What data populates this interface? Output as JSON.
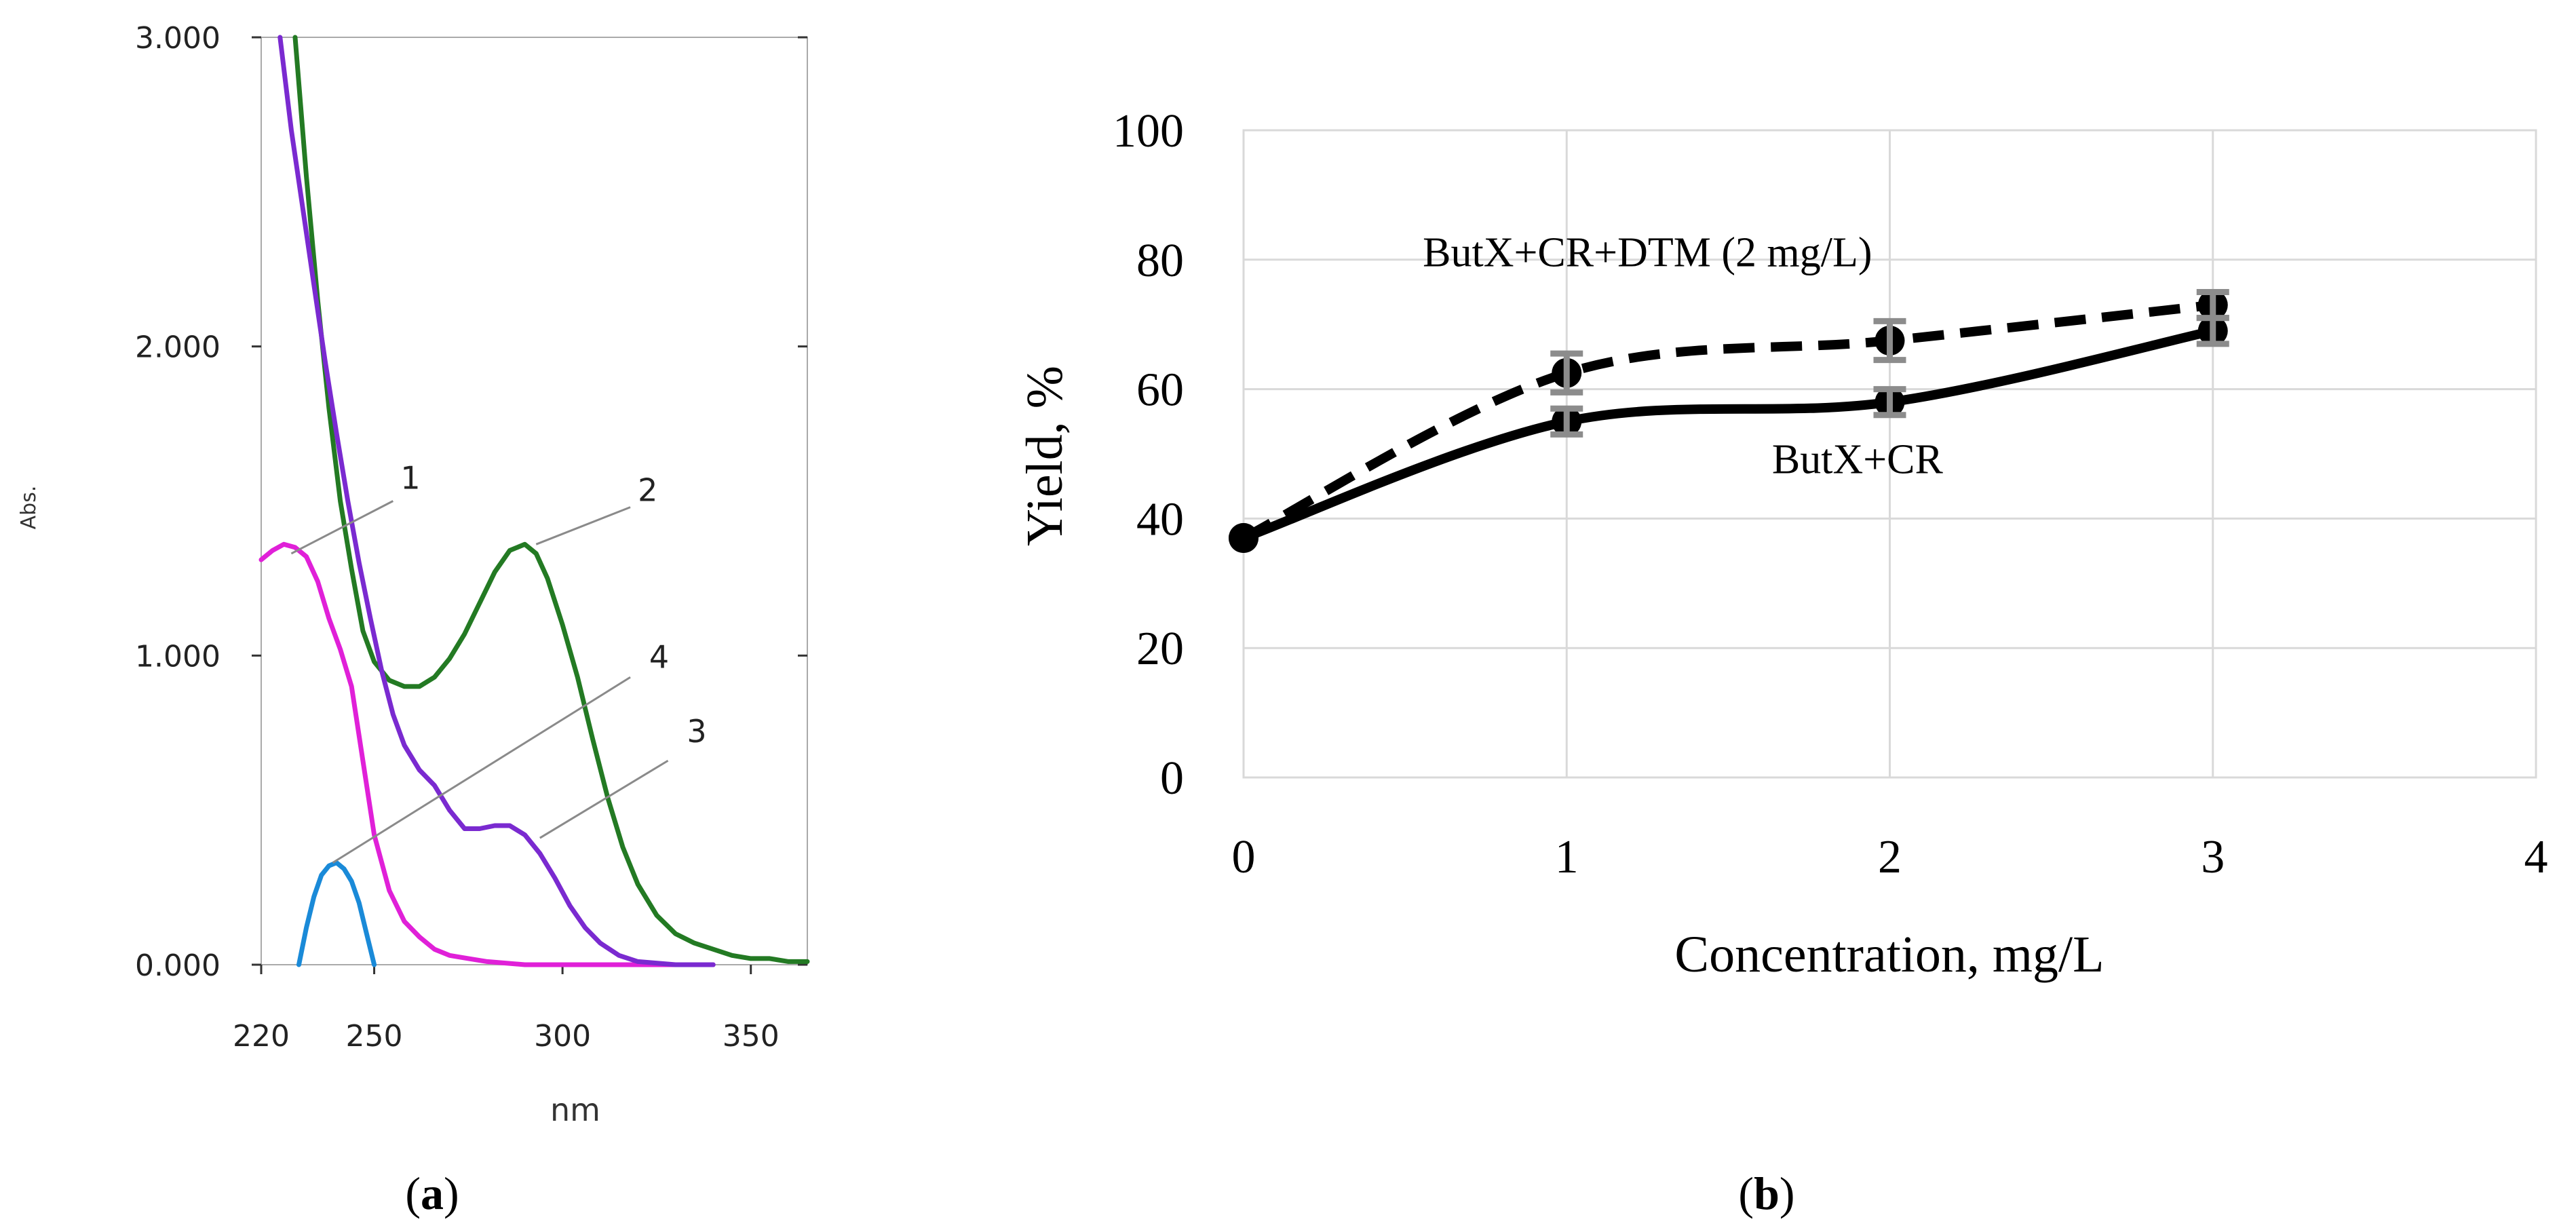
{
  "chart_data": [
    {
      "panel": "a",
      "type": "line",
      "caption": "(a)",
      "caption_bold": "a",
      "xlabel": "nm",
      "ylabel": "Abs.",
      "xlim": [
        220,
        365
      ],
      "ylim": [
        0,
        3
      ],
      "x_ticks": [
        220,
        250,
        300,
        350
      ],
      "x_tick_labels": [
        "220",
        "250",
        "300",
        "350"
      ],
      "y_ticks": [
        0,
        1,
        2,
        3
      ],
      "y_tick_labels": [
        "0.000",
        "1.000",
        "2.000",
        "3.000"
      ],
      "grid": false,
      "colors": {
        "1": "#e020d8",
        "2": "#237a23",
        "3": "#7a2ad0",
        "4": "#1a8ad8",
        "callout": "#8a8a8a"
      },
      "series": [
        {
          "name": "1",
          "x": [
            220,
            223,
            226,
            229,
            232,
            235,
            238,
            241,
            244,
            247,
            250,
            254,
            258,
            262,
            266,
            270,
            275,
            280,
            290,
            300,
            320,
            340
          ],
          "y": [
            1.31,
            1.34,
            1.36,
            1.35,
            1.32,
            1.24,
            1.12,
            1.02,
            0.9,
            0.66,
            0.42,
            0.24,
            0.14,
            0.09,
            0.05,
            0.03,
            0.02,
            0.01,
            0.0,
            0.0,
            0.0,
            0.0
          ]
        },
        {
          "name": "2",
          "x": [
            229,
            232,
            235,
            238,
            241,
            244,
            247,
            250,
            254,
            258,
            262,
            266,
            270,
            274,
            278,
            282,
            286,
            290,
            293,
            296,
            300,
            304,
            308,
            312,
            316,
            320,
            325,
            330,
            335,
            340,
            345,
            350,
            355,
            360,
            365
          ],
          "y": [
            3.0,
            2.55,
            2.15,
            1.8,
            1.5,
            1.28,
            1.08,
            0.98,
            0.92,
            0.9,
            0.9,
            0.93,
            0.99,
            1.07,
            1.17,
            1.27,
            1.34,
            1.36,
            1.33,
            1.25,
            1.1,
            0.93,
            0.73,
            0.54,
            0.38,
            0.26,
            0.16,
            0.1,
            0.07,
            0.05,
            0.03,
            0.02,
            0.02,
            0.01,
            0.01
          ]
        },
        {
          "name": "3",
          "x": [
            225,
            228,
            231,
            234,
            237,
            240,
            243,
            246,
            249,
            252,
            255,
            258,
            262,
            266,
            270,
            274,
            278,
            282,
            286,
            290,
            294,
            298,
            302,
            306,
            310,
            315,
            320,
            330,
            340
          ],
          "y": [
            3.0,
            2.7,
            2.45,
            2.2,
            1.95,
            1.72,
            1.5,
            1.3,
            1.12,
            0.95,
            0.81,
            0.71,
            0.63,
            0.58,
            0.5,
            0.44,
            0.44,
            0.45,
            0.45,
            0.42,
            0.36,
            0.28,
            0.19,
            0.12,
            0.07,
            0.03,
            0.01,
            0.0,
            0.0
          ]
        },
        {
          "name": "4",
          "x": [
            230,
            232,
            234,
            236,
            238,
            240,
            242,
            244,
            246,
            248,
            250
          ],
          "y": [
            0.0,
            0.12,
            0.22,
            0.29,
            0.32,
            0.33,
            0.31,
            0.27,
            0.2,
            0.1,
            0.0
          ]
        }
      ],
      "callouts": [
        {
          "label": "1",
          "x0": 228,
          "y0": 1.33,
          "x1": 255,
          "y1": 1.5,
          "lx": 257,
          "ly": 1.54
        },
        {
          "label": "2",
          "x0": 293,
          "y0": 1.36,
          "x1": 318,
          "y1": 1.48,
          "lx": 320,
          "ly": 1.5
        },
        {
          "label": "4",
          "x0": 239,
          "y0": 0.33,
          "x1": 318,
          "y1": 0.93,
          "lx": 323,
          "ly": 0.96
        },
        {
          "label": "3",
          "x0": 294,
          "y0": 0.41,
          "x1": 328,
          "y1": 0.66,
          "lx": 333,
          "ly": 0.72
        }
      ]
    },
    {
      "panel": "b",
      "type": "line",
      "caption": "(b)",
      "caption_bold": "b",
      "xlabel": "Concentration, mg/L",
      "ylabel": "Yield, %",
      "xlim": [
        0,
        4
      ],
      "ylim": [
        0,
        100
      ],
      "x_ticks": [
        0,
        1,
        2,
        3,
        4
      ],
      "x_tick_labels": [
        "0",
        "1",
        "2",
        "3",
        "4"
      ],
      "y_ticks": [
        0,
        20,
        40,
        60,
        80,
        100
      ],
      "y_tick_labels": [
        "0",
        "20",
        "40",
        "60",
        "80",
        "100"
      ],
      "grid": true,
      "colors": {
        "line": "#000000",
        "grid": "#d9d9d9",
        "errorbar": "#8c8c8c"
      },
      "series": [
        {
          "name": "ButX+CR",
          "label": "ButX+CR",
          "style": "solid",
          "x": [
            0,
            1,
            2,
            3
          ],
          "y": [
            37,
            55,
            58,
            69
          ],
          "error": [
            0,
            2,
            2,
            2
          ]
        },
        {
          "name": "ButX+CR+DTM (2 mg/L)",
          "label": "ButX+CR+DTM (2 mg/L)",
          "style": "dashed",
          "x": [
            0,
            1,
            2,
            3
          ],
          "y": [
            37,
            62.5,
            67.5,
            73
          ],
          "error": [
            0,
            3,
            3,
            2
          ]
        }
      ],
      "annotations": [
        {
          "text": "ButX+CR+DTM (2 mg/L)",
          "x": 1.25,
          "y": 79
        },
        {
          "text": "ButX+CR",
          "x": 1.9,
          "y": 47
        }
      ]
    }
  ]
}
